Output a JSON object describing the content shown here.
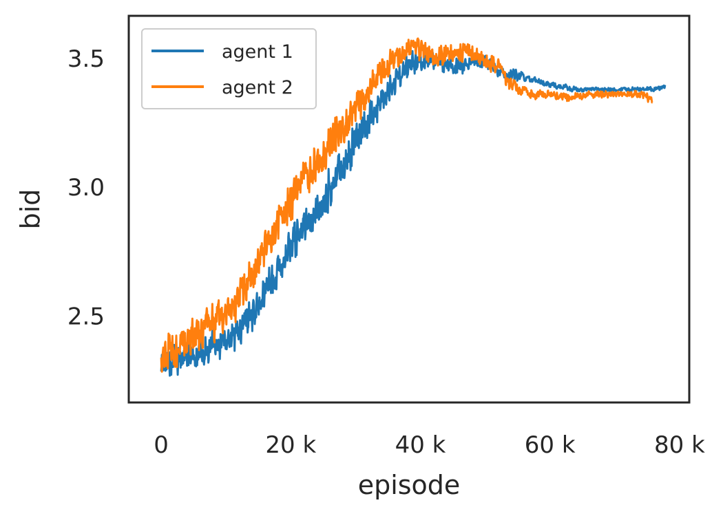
{
  "chart_data": {
    "type": "line",
    "title": "",
    "xlabel": "episode",
    "ylabel": "bid",
    "xlim": [
      -5000,
      81500
    ],
    "ylim": [
      2.165,
      3.665
    ],
    "x_ticks": [
      0,
      20000,
      40000,
      60000,
      80000
    ],
    "x_tick_labels": [
      "0",
      "20 k",
      "40 k",
      "60 k",
      "80 k"
    ],
    "y_ticks": [
      2.5,
      3.0,
      3.5
    ],
    "y_tick_labels": [
      "2.5",
      "3.0",
      "3.5"
    ],
    "grid": false,
    "legend_position": "top-left",
    "series": [
      {
        "name": "agent 1",
        "color": "#1f77b4",
        "x": [
          0,
          2000,
          4000,
          6000,
          8000,
          10000,
          12000,
          14000,
          16000,
          18000,
          20000,
          22000,
          24000,
          26000,
          28000,
          30000,
          32000,
          34000,
          36000,
          38000,
          40000,
          42000,
          44000,
          46000,
          48000,
          50000,
          52000,
          54000,
          56000,
          58000,
          60000,
          62000,
          64000,
          66000,
          68000,
          70000,
          72000,
          74000,
          76000,
          77800
        ],
        "y": [
          2.3,
          2.33,
          2.35,
          2.37,
          2.38,
          2.41,
          2.45,
          2.5,
          2.6,
          2.67,
          2.77,
          2.84,
          2.9,
          2.99,
          3.08,
          3.18,
          3.26,
          3.34,
          3.41,
          3.47,
          3.5,
          3.49,
          3.47,
          3.47,
          3.49,
          3.49,
          3.45,
          3.44,
          3.43,
          3.41,
          3.4,
          3.39,
          3.38,
          3.38,
          3.38,
          3.38,
          3.38,
          3.38,
          3.38,
          3.39
        ],
        "noise": [
          0.07,
          0.07,
          0.07,
          0.07,
          0.07,
          0.07,
          0.08,
          0.08,
          0.08,
          0.08,
          0.08,
          0.08,
          0.09,
          0.09,
          0.09,
          0.08,
          0.08,
          0.07,
          0.06,
          0.05,
          0.05,
          0.04,
          0.04,
          0.04,
          0.035,
          0.03,
          0.025,
          0.025,
          0.02,
          0.015,
          0.015,
          0.012,
          0.012,
          0.01,
          0.01,
          0.01,
          0.01,
          0.01,
          0.01,
          0.01
        ]
      },
      {
        "name": "agent 2",
        "color": "#ff7f0e",
        "x": [
          0,
          2000,
          4000,
          6000,
          8000,
          10000,
          12000,
          14000,
          16000,
          18000,
          20000,
          22000,
          24000,
          26000,
          28000,
          30000,
          32000,
          34000,
          36000,
          38000,
          40000,
          42000,
          44000,
          46000,
          48000,
          50000,
          52000,
          54000,
          56000,
          58000,
          60000,
          62000,
          64000,
          66000,
          68000,
          70000,
          72000,
          74000,
          75800
        ],
        "y": [
          2.35,
          2.37,
          2.41,
          2.44,
          2.47,
          2.51,
          2.57,
          2.66,
          2.78,
          2.85,
          2.95,
          3.04,
          3.08,
          3.17,
          3.23,
          3.31,
          3.38,
          3.45,
          3.5,
          3.53,
          3.54,
          3.5,
          3.51,
          3.53,
          3.52,
          3.49,
          3.47,
          3.4,
          3.37,
          3.36,
          3.36,
          3.35,
          3.35,
          3.36,
          3.36,
          3.36,
          3.36,
          3.36,
          3.34
        ],
        "noise": [
          0.08,
          0.08,
          0.08,
          0.08,
          0.08,
          0.08,
          0.08,
          0.08,
          0.09,
          0.09,
          0.09,
          0.09,
          0.09,
          0.09,
          0.09,
          0.08,
          0.07,
          0.06,
          0.05,
          0.05,
          0.05,
          0.05,
          0.05,
          0.05,
          0.045,
          0.04,
          0.035,
          0.03,
          0.025,
          0.02,
          0.02,
          0.018,
          0.018,
          0.015,
          0.015,
          0.015,
          0.015,
          0.015,
          0.02
        ]
      }
    ]
  }
}
